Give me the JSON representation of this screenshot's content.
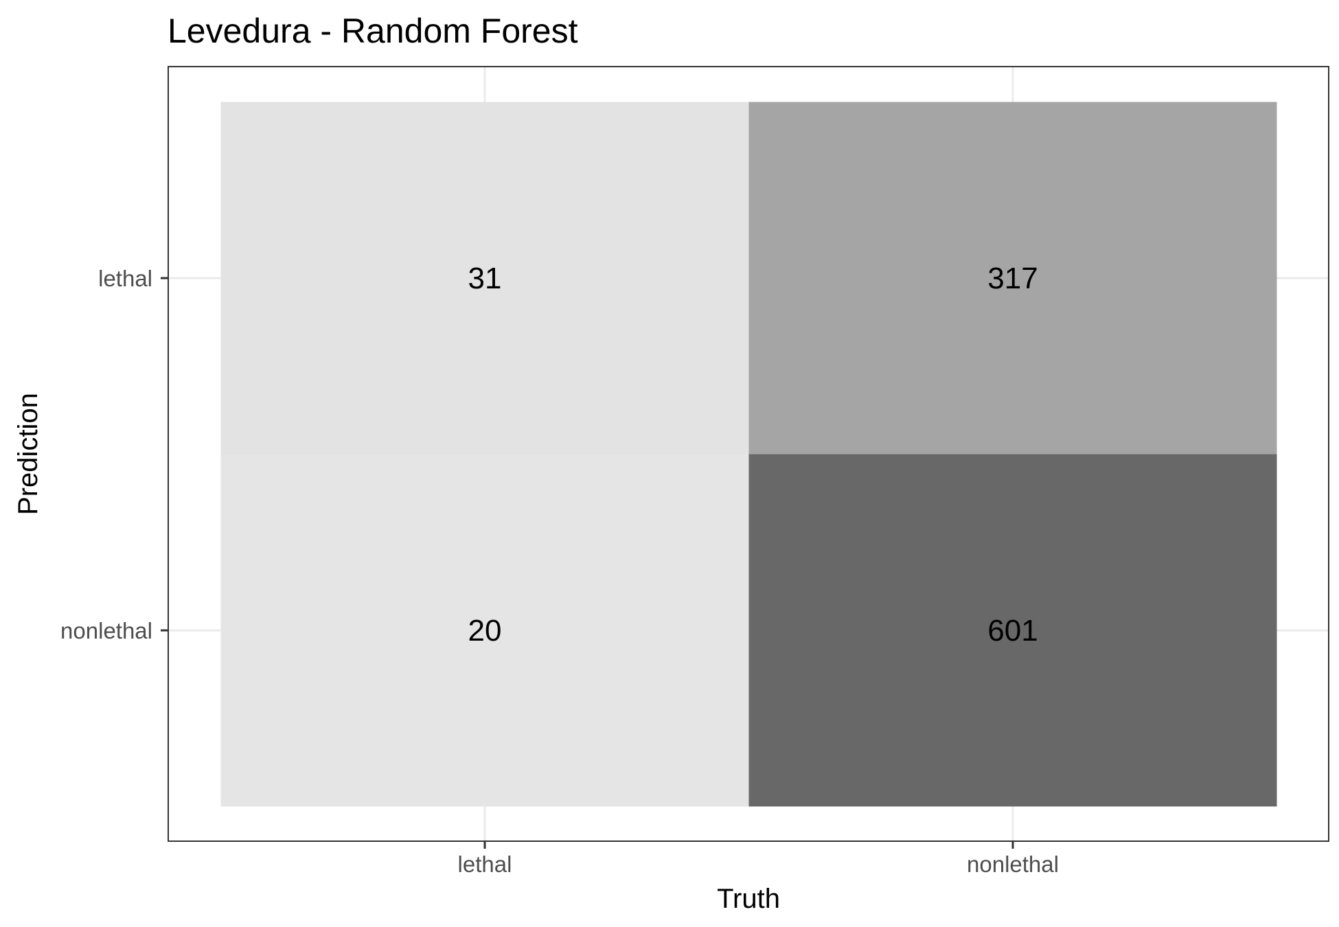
{
  "chart_data": {
    "type": "heatmap",
    "title": "Levedura - Random Forest",
    "xlabel": "Truth",
    "ylabel": "Prediction",
    "x_categories": [
      "lethal",
      "nonlethal"
    ],
    "y_categories": [
      "lethal",
      "nonlethal"
    ],
    "cells": [
      {
        "truth": "lethal",
        "prediction": "lethal",
        "value": 31
      },
      {
        "truth": "nonlethal",
        "prediction": "lethal",
        "value": 317
      },
      {
        "truth": "lethal",
        "prediction": "nonlethal",
        "value": 20
      },
      {
        "truth": "nonlethal",
        "prediction": "nonlethal",
        "value": 601
      }
    ],
    "colors": {
      "fill_low": "#e5e5e5",
      "fill_high": "#686868",
      "panel_border": "#333333",
      "grid": "#ebebeb",
      "background": "#ffffff"
    },
    "grid": true,
    "legend": "none"
  }
}
